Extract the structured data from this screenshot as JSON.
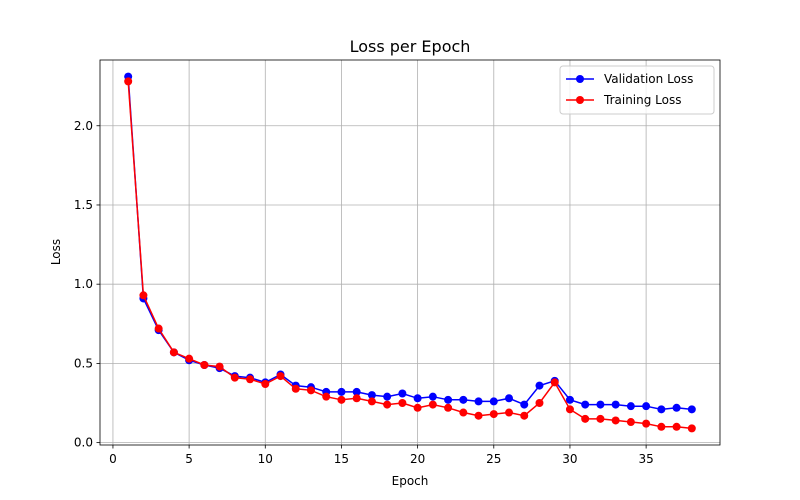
{
  "chart_data": {
    "type": "line",
    "title": "Loss per Epoch",
    "xlabel": "Epoch",
    "ylabel": "Loss",
    "xlim": [
      -0.85,
      39.85
    ],
    "ylim": [
      -0.015,
      2.415
    ],
    "xticks": [
      0,
      5,
      10,
      15,
      20,
      25,
      30,
      35
    ],
    "yticks": [
      0.0,
      0.5,
      1.0,
      1.5,
      2.0
    ],
    "ytick_labels": [
      "0.0",
      "0.5",
      "1.0",
      "1.5",
      "2.0"
    ],
    "grid": true,
    "legend_position": "upper right",
    "x": [
      1,
      2,
      3,
      4,
      5,
      6,
      7,
      8,
      9,
      10,
      11,
      12,
      13,
      14,
      15,
      16,
      17,
      18,
      19,
      20,
      21,
      22,
      23,
      24,
      25,
      26,
      27,
      28,
      29,
      30,
      31,
      32,
      33,
      34,
      35,
      36,
      37,
      38
    ],
    "series": [
      {
        "name": "Validation Loss",
        "color": "#0000ff",
        "values": [
          2.31,
          0.91,
          0.71,
          0.57,
          0.52,
          0.49,
          0.47,
          0.42,
          0.41,
          0.38,
          0.43,
          0.36,
          0.35,
          0.32,
          0.32,
          0.32,
          0.3,
          0.29,
          0.31,
          0.28,
          0.29,
          0.27,
          0.27,
          0.26,
          0.26,
          0.28,
          0.24,
          0.36,
          0.39,
          0.27,
          0.24,
          0.24,
          0.24,
          0.23,
          0.23,
          0.21,
          0.22,
          0.21
        ]
      },
      {
        "name": "Training Loss",
        "color": "#ff0000",
        "values": [
          2.28,
          0.93,
          0.72,
          0.57,
          0.53,
          0.49,
          0.48,
          0.41,
          0.4,
          0.37,
          0.42,
          0.34,
          0.33,
          0.29,
          0.27,
          0.28,
          0.26,
          0.24,
          0.25,
          0.22,
          0.24,
          0.22,
          0.19,
          0.17,
          0.18,
          0.19,
          0.17,
          0.25,
          0.38,
          0.21,
          0.15,
          0.15,
          0.14,
          0.13,
          0.12,
          0.1,
          0.1,
          0.09
        ]
      }
    ]
  }
}
